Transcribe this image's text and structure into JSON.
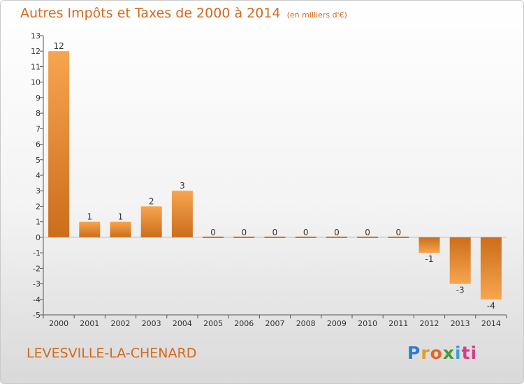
{
  "header": {
    "title": "Autres Impôts et Taxes de 2000 à 2014",
    "unit": "(en milliers d'€)"
  },
  "footer": {
    "place": "LEVESVILLE-LA-CHENARD",
    "brand": "Proxiti",
    "brand_letters": [
      "P",
      "r",
      "o",
      "x",
      "i",
      "ti"
    ]
  },
  "colors": {
    "bar_light": "#f7a54e",
    "bar_dark": "#cc6d1c",
    "title": "#d2691e"
  },
  "chart_data": {
    "type": "bar",
    "title": "Autres Impôts et Taxes de 2000 à 2014",
    "subtitle": "(en milliers d'€)",
    "categories": [
      "2000",
      "2001",
      "2002",
      "2003",
      "2004",
      "2005",
      "2006",
      "2007",
      "2008",
      "2009",
      "2010",
      "2011",
      "2012",
      "2013",
      "2014"
    ],
    "values": [
      12,
      1,
      1,
      2,
      3,
      0,
      0,
      0,
      0,
      0,
      0,
      0,
      -1,
      -3,
      -4
    ],
    "ylim": [
      -5,
      13
    ],
    "yticks": [
      13,
      12,
      11,
      10,
      9,
      8,
      7,
      6,
      5,
      4,
      3,
      2,
      1,
      0,
      -1,
      -2,
      -3,
      -4,
      -5
    ],
    "grid": false,
    "legend": "none"
  }
}
